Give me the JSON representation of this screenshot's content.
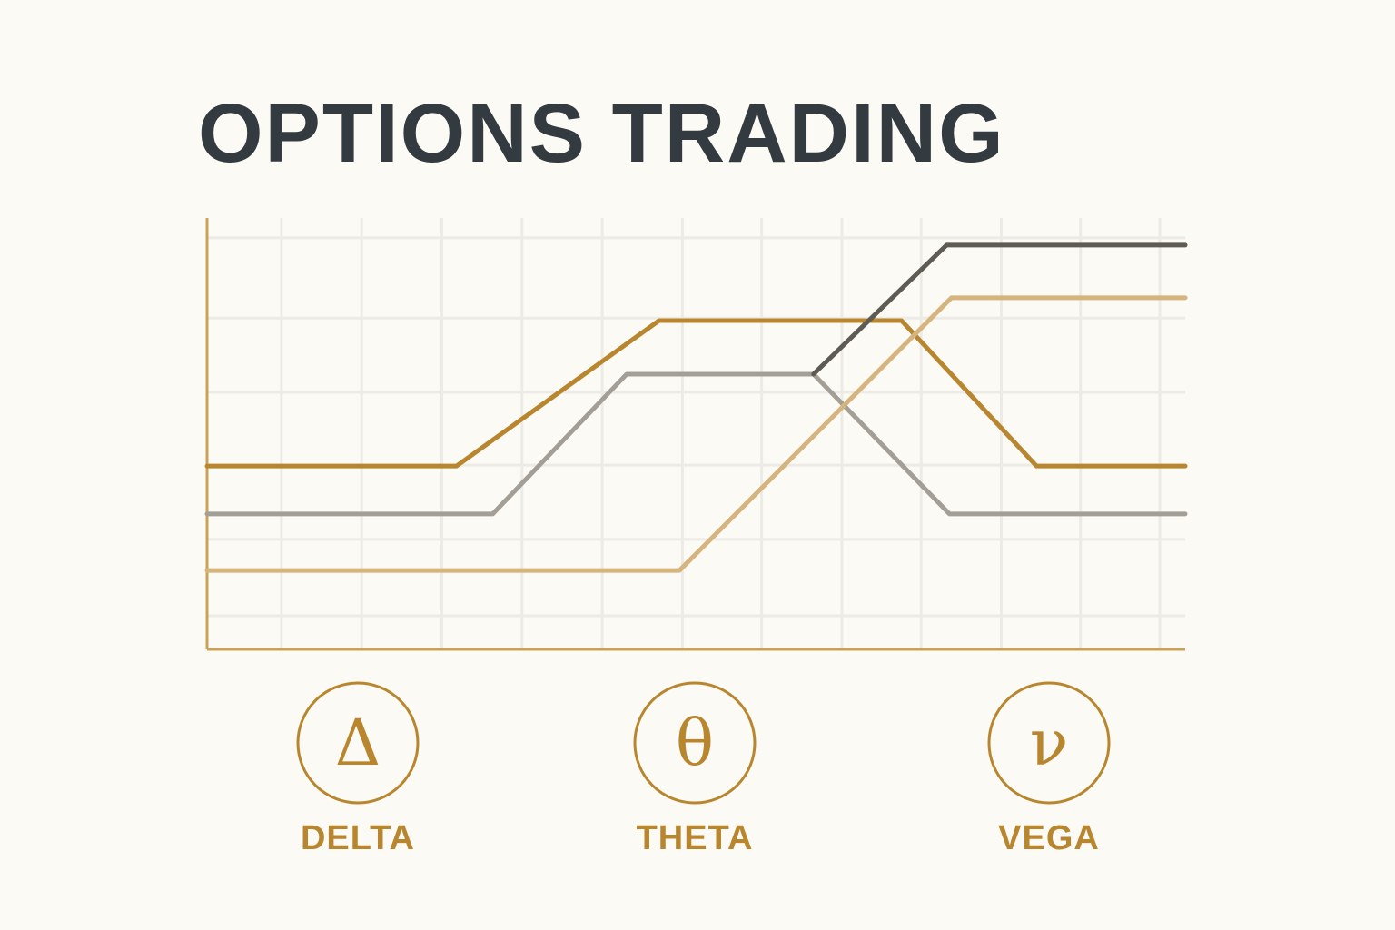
{
  "chart_data": {
    "type": "line",
    "title": "OPTIONS TRADING",
    "xlim": [
      0,
      100
    ],
    "ylim": [
      0,
      100
    ],
    "xticks": [
      7.6,
      15.8,
      24,
      32.2,
      40.4,
      48.6,
      56.7,
      64.9,
      73,
      81.2,
      89.3,
      97.4
    ],
    "yticks": [
      7.8,
      25.5,
      42.7,
      59.6,
      76.8,
      95.4
    ],
    "grid": true,
    "axis_color": "#c9a25a",
    "grid_color": "#ecebe6",
    "series": [
      {
        "color": "#b8862f",
        "x": [
          0,
          25.5,
          46.2,
          71,
          84.8,
          100
        ],
        "values": [
          42.5,
          42.5,
          76.2,
          76.2,
          42.5,
          42.5
        ]
      },
      {
        "color": "#a39f97",
        "x": [
          0,
          29.2,
          42.9,
          62,
          75.9,
          100
        ],
        "values": [
          31.4,
          31.4,
          63.8,
          63.8,
          31.4,
          31.4
        ]
      },
      {
        "color": "#5e5a54",
        "x": [
          62,
          75.6,
          100
        ],
        "values": [
          63.8,
          93.7,
          93.7
        ]
      },
      {
        "color": "#d6b47e",
        "x": [
          0,
          48.3,
          76.1,
          100
        ],
        "values": [
          18.3,
          18.3,
          81.5,
          81.5
        ]
      }
    ],
    "legend": [
      {
        "symbol": "Δ",
        "label": "DELTA"
      },
      {
        "symbol": "θ",
        "label": "THETA"
      },
      {
        "symbol": "ν",
        "label": "VEGA"
      }
    ],
    "legend_color": "#b8862f"
  }
}
